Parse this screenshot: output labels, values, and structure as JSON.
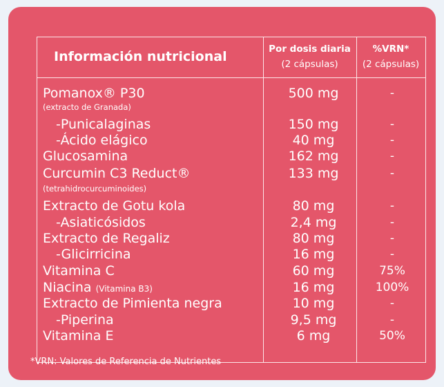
{
  "header": {
    "title": "Información nutricional",
    "col_dose_l1": "Por dosis diaria",
    "col_dose_l2": "(2 cápsulas)",
    "col_vrn_l1": "%VRN*",
    "col_vrn_l2": "(2 cápsulas)"
  },
  "rows": [
    {
      "name": "Pomanox® P30",
      "note": "",
      "dose": "500 mg",
      "vrn": "-"
    },
    {
      "name": "(extracto de Granada)",
      "note": "",
      "dose": "",
      "vrn": ""
    },
    {
      "name": "-Punicalaginas",
      "note": "",
      "dose": "150 mg",
      "vrn": "-"
    },
    {
      "name": "-Ácido elágico",
      "note": "",
      "dose": "40 mg",
      "vrn": "-"
    },
    {
      "name": "Glucosamina",
      "note": "",
      "dose": "162 mg",
      "vrn": "-"
    },
    {
      "name": "Curcumin C3 Reduct®",
      "note": "",
      "dose": "133 mg",
      "vrn": "-"
    },
    {
      "name": "(tetrahidrocurcuminoides)",
      "note": "",
      "dose": "",
      "vrn": ""
    },
    {
      "name": "Extracto de Gotu kola",
      "note": "",
      "dose": "80 mg",
      "vrn": "-"
    },
    {
      "name": "-Asiaticósidos",
      "note": "",
      "dose": "2,4 mg",
      "vrn": "-"
    },
    {
      "name": "Extracto de Regaliz",
      "note": "",
      "dose": "80 mg",
      "vrn": "-"
    },
    {
      "name": "-Glicirricina",
      "note": "",
      "dose": "16 mg",
      "vrn": "-"
    },
    {
      "name": "Vitamina C",
      "note": "",
      "dose": "60 mg",
      "vrn": "75%"
    },
    {
      "name": "Niacina",
      "note": "(Vitamina B3)",
      "dose": "16 mg",
      "vrn": "100%"
    },
    {
      "name": "Extracto de Pimienta negra",
      "note": "",
      "dose": "10 mg",
      "vrn": "-"
    },
    {
      "name": "-Piperina",
      "note": "",
      "dose": "9,5 mg",
      "vrn": "-"
    },
    {
      "name": "Vitamina E",
      "note": "",
      "dose": "6 mg",
      "vrn": "50%"
    }
  ],
  "footnote": "*VRN: Valores de Referencia de Nutrientes",
  "colors": {
    "panel": "#e4566a",
    "background": "#edf2f8",
    "text": "#ffffff"
  }
}
